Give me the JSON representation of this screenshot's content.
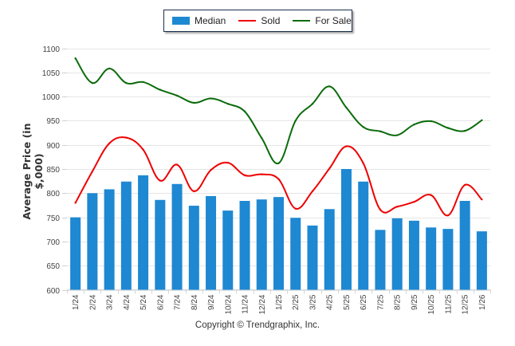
{
  "chart_data": {
    "type": "bar",
    "title": "",
    "xlabel": "",
    "ylabel": "Average Price (in $,000)",
    "ylim": [
      600,
      1100
    ],
    "yticks": [
      600,
      650,
      700,
      750,
      800,
      850,
      900,
      950,
      1000,
      1050,
      1100
    ],
    "grid": true,
    "legend_position": "top-center",
    "categories": [
      "1/24",
      "2/24",
      "3/24",
      "4/24",
      "5/24",
      "6/24",
      "7/24",
      "8/24",
      "9/24",
      "10/24",
      "11/24",
      "12/24",
      "1/25",
      "2/25",
      "3/25",
      "4/25",
      "5/25",
      "6/25",
      "7/25",
      "8/25",
      "9/25",
      "10/25",
      "11/25",
      "12/25",
      "1/26"
    ],
    "series": [
      {
        "name": "Median",
        "type": "bar",
        "color": "#1e88d2",
        "values": [
          750,
          800,
          808,
          824,
          837,
          786,
          819,
          774,
          794,
          764,
          784,
          787,
          792,
          749,
          733,
          767,
          850,
          824,
          724,
          748,
          743,
          729,
          726,
          784,
          721
        ]
      },
      {
        "name": "Sold",
        "type": "line",
        "color": "#ee0000",
        "values": [
          780,
          845,
          903,
          915,
          890,
          826,
          859,
          804,
          848,
          863,
          837,
          839,
          829,
          768,
          804,
          851,
          897,
          862,
          766,
          772,
          782,
          796,
          754,
          817,
          787
        ]
      },
      {
        "name": "For Sale",
        "type": "line",
        "color": "#0b6b0b",
        "values": [
          1079,
          1028,
          1058,
          1028,
          1030,
          1014,
          1002,
          987,
          996,
          985,
          969,
          914,
          862,
          950,
          985,
          1021,
          977,
          937,
          928,
          920,
          942,
          949,
          935,
          929,
          951
        ]
      }
    ]
  },
  "footer": {
    "copyright": "Copyright © Trendgraphix, Inc."
  }
}
